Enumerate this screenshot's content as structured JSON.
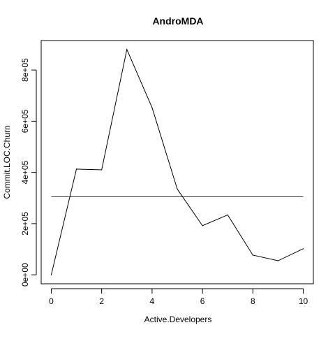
{
  "chart_data": {
    "type": "line",
    "title": "AndroMDA",
    "xlabel": "Active.Developers",
    "ylabel": "Commit.LOC.Churn",
    "x": [
      0,
      1,
      2,
      3,
      4,
      5,
      6,
      7,
      8,
      9,
      10
    ],
    "series": [
      {
        "values": [
          0,
          413000,
          410000,
          880000,
          653000,
          335000,
          192000,
          234000,
          77000,
          55000,
          102000
        ]
      }
    ],
    "reference_line": {
      "y": 305000
    },
    "xlim": [
      -0.4,
      10.4
    ],
    "ylim": [
      -35000,
      915000
    ],
    "x_ticks": [
      0,
      2,
      4,
      6,
      8,
      10
    ],
    "x_tick_labels": [
      "0",
      "2",
      "4",
      "6",
      "8",
      "10"
    ],
    "y_ticks": [
      0,
      200000,
      400000,
      600000,
      800000
    ],
    "y_tick_labels": [
      "0e+00",
      "2e+05",
      "4e+05",
      "6e+05",
      "8e+05"
    ],
    "grid": false,
    "colors": {
      "line": "#000000",
      "reference_line": "#555555",
      "axis": "#000000"
    }
  }
}
